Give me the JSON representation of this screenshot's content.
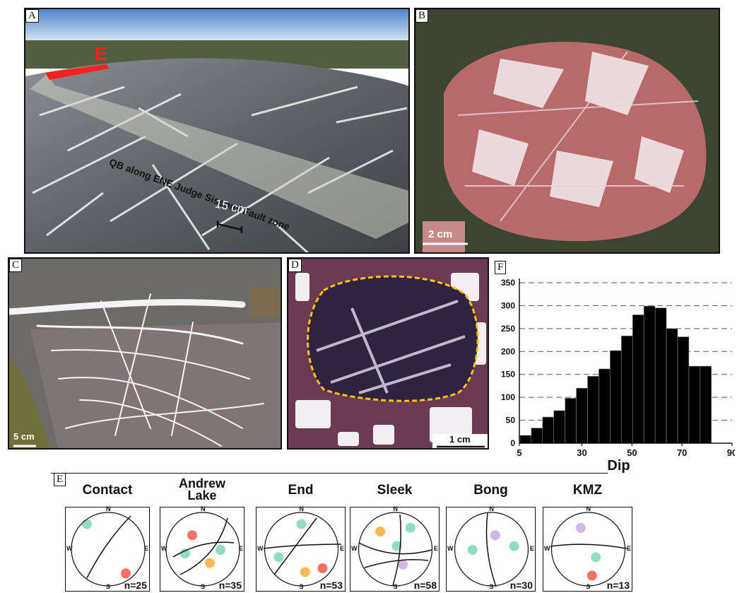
{
  "panels": {
    "A": {
      "label": "A",
      "annotation_E": "E",
      "fault_text": "QB along ENE Judge Sissons Fault zone",
      "scale": "15 cm"
    },
    "B": {
      "label": "B",
      "scale": "2 cm"
    },
    "C": {
      "label": "C",
      "scale": "5 cm"
    },
    "D": {
      "label": "D",
      "scale": "1 cm"
    },
    "E": {
      "label": "E"
    },
    "F": {
      "label": "F"
    }
  },
  "chart_data": {
    "type": "bar",
    "xlabel": "Dip",
    "ylabel": "",
    "ylim": [
      0,
      350
    ],
    "yticks": [
      0,
      50,
      100,
      150,
      200,
      250,
      300,
      350
    ],
    "xticks": [
      5,
      30,
      50,
      70,
      90
    ],
    "xlim": [
      5,
      90
    ],
    "bar_width": 4.5,
    "grid": "horizontal dashed",
    "bars": [
      {
        "x": 7.5,
        "value": 17
      },
      {
        "x": 12,
        "value": 33
      },
      {
        "x": 16.5,
        "value": 57
      },
      {
        "x": 21,
        "value": 71
      },
      {
        "x": 25.5,
        "value": 98
      },
      {
        "x": 30,
        "value": 120
      },
      {
        "x": 34.5,
        "value": 146
      },
      {
        "x": 39,
        "value": 162
      },
      {
        "x": 43.5,
        "value": 202
      },
      {
        "x": 48,
        "value": 234
      },
      {
        "x": 52.5,
        "value": 280
      },
      {
        "x": 57,
        "value": 299
      },
      {
        "x": 61.5,
        "value": 295
      },
      {
        "x": 66,
        "value": 250
      },
      {
        "x": 70.5,
        "value": 232
      },
      {
        "x": 75,
        "value": 168
      },
      {
        "x": 79.5,
        "value": 168
      }
    ]
  },
  "stereonets": [
    {
      "title": "Contact",
      "n": "n=25",
      "N": "N",
      "S": "S",
      "E": "E",
      "W": "W"
    },
    {
      "title": "Andrew Lake",
      "n": "n=35",
      "N": "N",
      "S": "S",
      "E": "E",
      "W": "W"
    },
    {
      "title": "End",
      "n": "n=53",
      "N": "N",
      "S": "S",
      "E": "E",
      "W": "W"
    },
    {
      "title": "Sleek",
      "n": "n=58",
      "N": "N",
      "S": "S",
      "E": "E",
      "W": "W"
    },
    {
      "title": "Bong",
      "n": "n=30",
      "N": "N",
      "S": "S",
      "E": "E",
      "W": "W"
    },
    {
      "title": "KMZ",
      "n": "n=13",
      "N": "N",
      "S": "S",
      "E": "E",
      "W": "W"
    }
  ],
  "colors": {
    "sky": "#a9c6e3",
    "rock_gray": "#6f7478",
    "vein_white": "#f2f2f2",
    "red_annotation": "#ff2020",
    "breccia_red": "#9a4a4a",
    "thin_section_purple": "#5a3a5a",
    "dash_yellow": "#ffc20e",
    "bar_fill": "#000000"
  }
}
